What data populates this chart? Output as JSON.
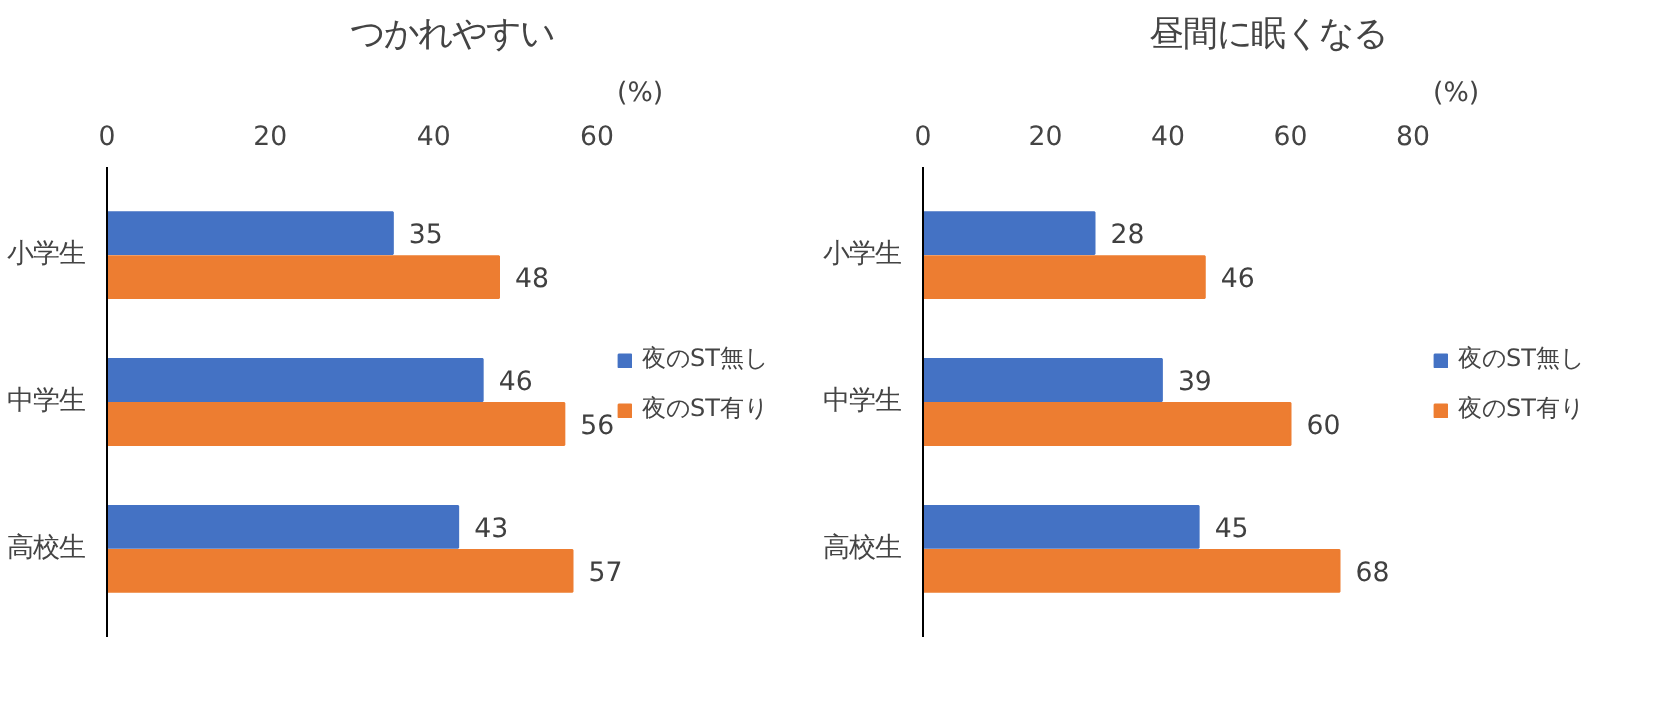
{
  "chart_data": [
    {
      "type": "bar",
      "orientation": "horizontal",
      "title": "つかれやすい",
      "xlabel": "(%)",
      "categories": [
        "小学生",
        "中学生",
        "高校生"
      ],
      "xlim": [
        0,
        60
      ],
      "xticks": [
        0,
        20,
        40,
        60
      ],
      "grid": false,
      "legend": "right",
      "data_labels": true,
      "series": [
        {
          "name": "夜のST無し",
          "color": "#4472c4",
          "values": [
            35,
            46,
            43
          ]
        },
        {
          "name": "夜のST有り",
          "color": "#ed7d31",
          "values": [
            48,
            56,
            57
          ]
        }
      ]
    },
    {
      "type": "bar",
      "orientation": "horizontal",
      "title": "昼間に眠くなる",
      "xlabel": "(%)",
      "categories": [
        "小学生",
        "中学生",
        "高校生"
      ],
      "xlim": [
        0,
        80
      ],
      "xticks": [
        0,
        20,
        40,
        60,
        80
      ],
      "grid": false,
      "legend": "right",
      "data_labels": true,
      "series": [
        {
          "name": "夜のST無し",
          "color": "#4472c4",
          "values": [
            28,
            39,
            45
          ]
        },
        {
          "name": "夜のST有り",
          "color": "#ed7d31",
          "values": [
            46,
            60,
            68
          ]
        }
      ]
    }
  ]
}
